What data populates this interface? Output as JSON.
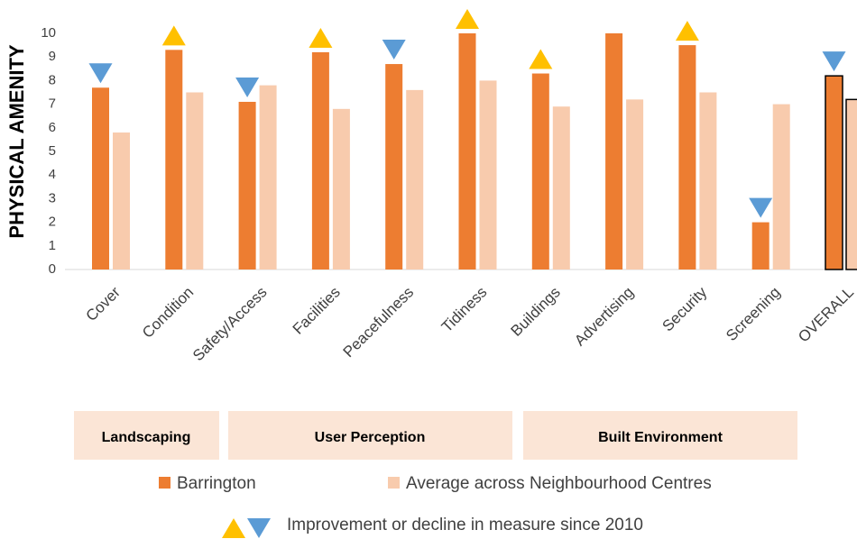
{
  "chart_data": {
    "type": "bar",
    "y_label": "PHYSICAL AMENITY",
    "categories": [
      "Cover",
      "Condition",
      "Safety/Access",
      "Facilities",
      "Peacefulness",
      "Tidiness",
      "Buildings",
      "Advertising",
      "Security",
      "Screening",
      "OVERALL"
    ],
    "series": [
      {
        "name": "Barrington",
        "color": "#ed7d31",
        "values": [
          7.7,
          9.3,
          7.1,
          9.2,
          8.7,
          10.0,
          8.3,
          10.0,
          9.5,
          2.0,
          8.2
        ]
      },
      {
        "name": "Average across Neighbourhood Centres",
        "color": "#f8cbad",
        "values": [
          5.8,
          7.5,
          7.8,
          6.8,
          7.6,
          8.0,
          6.9,
          7.2,
          7.5,
          7.0,
          7.2
        ]
      }
    ],
    "change": [
      "down",
      "up",
      "down",
      "up",
      "down",
      "up",
      "up",
      null,
      "up",
      "down",
      "down"
    ],
    "change_colors": {
      "up": "#ffc000",
      "down": "#5b9bd5"
    },
    "change_legend": "Improvement or decline in measure since 2010",
    "groups": [
      "Landscaping",
      "User Perception",
      "Built Environment"
    ],
    "ylim": [
      0,
      10.5
    ],
    "yticks": [
      0,
      1,
      2,
      3,
      4,
      5,
      6,
      7,
      8,
      9,
      10
    ],
    "grid": false
  }
}
